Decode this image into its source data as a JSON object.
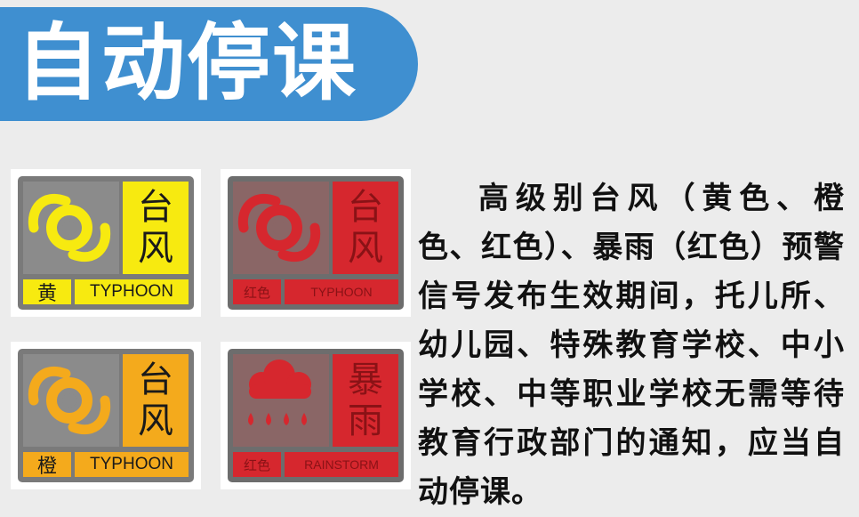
{
  "title": "自动停课",
  "signs": {
    "typhoon_yellow": {
      "label": [
        "台",
        "风"
      ],
      "level": "黄",
      "type": "TYPHOON",
      "color": "#f7ea10"
    },
    "typhoon_red": {
      "label": [
        "台",
        "风"
      ],
      "level": "红色",
      "type": "TYPHOON",
      "color": "#d6272e"
    },
    "typhoon_orange": {
      "label": [
        "台",
        "风"
      ],
      "level": "橙",
      "type": "TYPHOON",
      "color": "#f4aa1c"
    },
    "rainstorm_red": {
      "label": [
        "暴",
        "雨"
      ],
      "level": "红色",
      "type": "RAINSTORM",
      "color": "#d6272e"
    }
  },
  "notice": "高级别台风（黄色、橙色、红色）、暴雨（红色）预警信号发布生效期间，托儿所、幼儿园、特殊教育学校、中小学校、中等职业学校无需等待教育行政部门的通知，应当自动停课。",
  "colors": {
    "banner": "#3f8fd0",
    "background": "#ececec"
  }
}
